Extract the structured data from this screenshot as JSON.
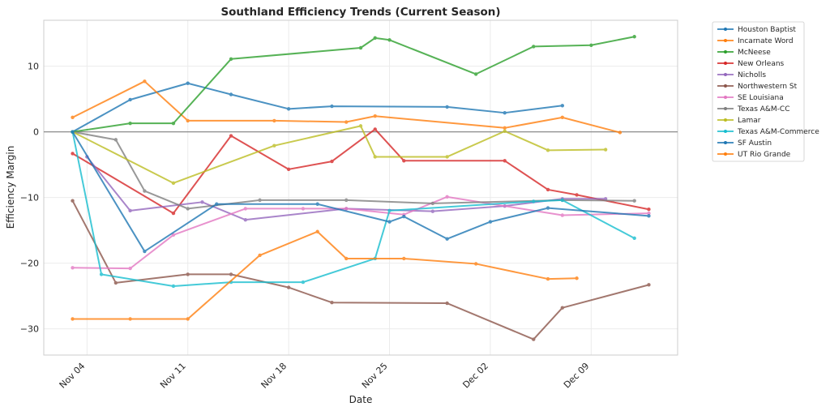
{
  "chart_data": {
    "type": "line",
    "title": "Southland Efficiency Trends (Current Season)",
    "xlabel": "Date",
    "ylabel": "Efficiency Margin",
    "x_ticks": [
      "Nov 04",
      "Nov 11",
      "Nov 18",
      "Nov 25",
      "Dec 02",
      "Dec 09"
    ],
    "y_ticks": [
      -30,
      -20,
      -10,
      0,
      10
    ],
    "ylim": [
      -34.0,
      17.0
    ],
    "xlim_days_from_nov04": [
      -3.0,
      41.0
    ],
    "grid": true,
    "zero_line": true,
    "legend_position": "outside-top-right",
    "series": [
      {
        "name": "Houston Baptist",
        "color": "#1f77b4",
        "x": [
          "Nov 03",
          "Nov 07",
          "Nov 11",
          "Nov 14",
          "Nov 18",
          "Nov 21",
          "Nov 29",
          "Dec 03",
          "Dec 07"
        ],
        "values": [
          0,
          4.9,
          7.4,
          5.7,
          3.5,
          3.9,
          3.8,
          2.9,
          4.0
        ]
      },
      {
        "name": "Incarnate Word",
        "color": "#ff7f0e",
        "x": [
          "Nov 03",
          "Nov 08",
          "Nov 11",
          "Nov 17",
          "Nov 22",
          "Nov 24",
          "Dec 03",
          "Dec 07",
          "Dec 11"
        ],
        "values": [
          2.2,
          7.7,
          1.7,
          1.7,
          1.5,
          2.4,
          0.6,
          2.2,
          -0.1
        ]
      },
      {
        "name": "McNeese",
        "color": "#2ca02c",
        "x": [
          "Nov 03",
          "Nov 07",
          "Nov 10",
          "Nov 14",
          "Nov 23",
          "Nov 24",
          "Nov 25",
          "Dec 01",
          "Dec 05",
          "Dec 09",
          "Dec 12"
        ],
        "values": [
          0,
          1.3,
          1.3,
          11.1,
          12.8,
          14.3,
          14.0,
          8.8,
          13.0,
          13.2,
          14.5
        ]
      },
      {
        "name": "New Orleans",
        "color": "#d62728",
        "x": [
          "Nov 03",
          "Nov 10",
          "Nov 14",
          "Nov 18",
          "Nov 21",
          "Nov 24",
          "Nov 26",
          "Dec 03",
          "Dec 06",
          "Dec 08",
          "Dec 13"
        ],
        "values": [
          -3.3,
          -12.4,
          -0.6,
          -5.7,
          -4.5,
          0.4,
          -4.4,
          -4.4,
          -8.8,
          -9.6,
          -11.8
        ]
      },
      {
        "name": "Nicholls",
        "color": "#9467bd",
        "x": [
          "Nov 04",
          "Nov 07",
          "Nov 12",
          "Nov 15",
          "Nov 22",
          "Nov 28",
          "Dec 03",
          "Dec 07",
          "Dec 10"
        ],
        "values": [
          -3.8,
          -12.0,
          -10.7,
          -13.4,
          -11.7,
          -12.1,
          -11.3,
          -10.2,
          -10.2
        ]
      },
      {
        "name": "Northwestern St",
        "color": "#8c564b",
        "x": [
          "Nov 03",
          "Nov 06",
          "Nov 11",
          "Nov 14",
          "Nov 18",
          "Nov 21",
          "Nov 29",
          "Dec 05",
          "Dec 07",
          "Dec 13"
        ],
        "values": [
          -10.5,
          -23.0,
          -21.7,
          -21.7,
          -23.7,
          -26.0,
          -26.1,
          -31.6,
          -26.8,
          -23.3
        ]
      },
      {
        "name": "SE Louisiana",
        "color": "#e377c2",
        "x": [
          "Nov 03",
          "Nov 07",
          "Nov 10",
          "Nov 15",
          "Nov 19",
          "Nov 22",
          "Nov 26",
          "Nov 29",
          "Dec 07",
          "Dec 13"
        ],
        "values": [
          -20.7,
          -20.8,
          -15.7,
          -11.7,
          -11.7,
          -11.7,
          -12.6,
          -9.9,
          -12.7,
          -12.4
        ]
      },
      {
        "name": "Texas A&M-CC",
        "color": "#7f7f7f",
        "x": [
          "Nov 03",
          "Nov 06",
          "Nov 08",
          "Nov 11",
          "Nov 16",
          "Nov 22",
          "Nov 28",
          "Dec 07",
          "Dec 12"
        ],
        "values": [
          0,
          -1.2,
          -9.0,
          -11.7,
          -10.4,
          -10.4,
          -10.9,
          -10.4,
          -10.5
        ]
      },
      {
        "name": "Lamar",
        "color": "#bcbd22",
        "x": [
          "Nov 03",
          "Nov 10",
          "Nov 17",
          "Nov 23",
          "Nov 24",
          "Nov 29",
          "Dec 03",
          "Dec 06",
          "Dec 10"
        ],
        "values": [
          0,
          -7.8,
          -2.1,
          0.9,
          -3.8,
          -3.8,
          0.1,
          -2.8,
          -2.7
        ]
      },
      {
        "name": "Texas A&M-Commerce",
        "color": "#17becf",
        "x": [
          "Nov 03",
          "Nov 05",
          "Nov 10",
          "Nov 14",
          "Nov 19",
          "Nov 24",
          "Nov 25",
          "Dec 05",
          "Dec 07",
          "Dec 12"
        ],
        "values": [
          0,
          -21.7,
          -23.5,
          -22.9,
          -22.9,
          -19.3,
          -12.0,
          -10.6,
          -10.4,
          -16.2
        ]
      },
      {
        "name": "SF Austin",
        "color": "#1f77b4",
        "x": [
          "Nov 03",
          "Nov 08",
          "Nov 13",
          "Nov 20",
          "Nov 25",
          "Nov 26",
          "Nov 29",
          "Dec 02",
          "Dec 06",
          "Dec 13"
        ],
        "values": [
          0,
          -18.2,
          -11.0,
          -11.0,
          -13.7,
          -12.9,
          -16.3,
          -13.7,
          -11.6,
          -12.8
        ]
      },
      {
        "name": "UT Rio Grande",
        "color": "#ff7f0e",
        "x": [
          "Nov 03",
          "Nov 07",
          "Nov 11",
          "Nov 16",
          "Nov 20",
          "Nov 22",
          "Nov 26",
          "Dec 01",
          "Dec 06",
          "Dec 08"
        ],
        "values": [
          -28.5,
          -28.5,
          -28.5,
          -18.8,
          -15.2,
          -19.3,
          -19.3,
          -20.1,
          -22.4,
          -22.3
        ]
      }
    ]
  }
}
